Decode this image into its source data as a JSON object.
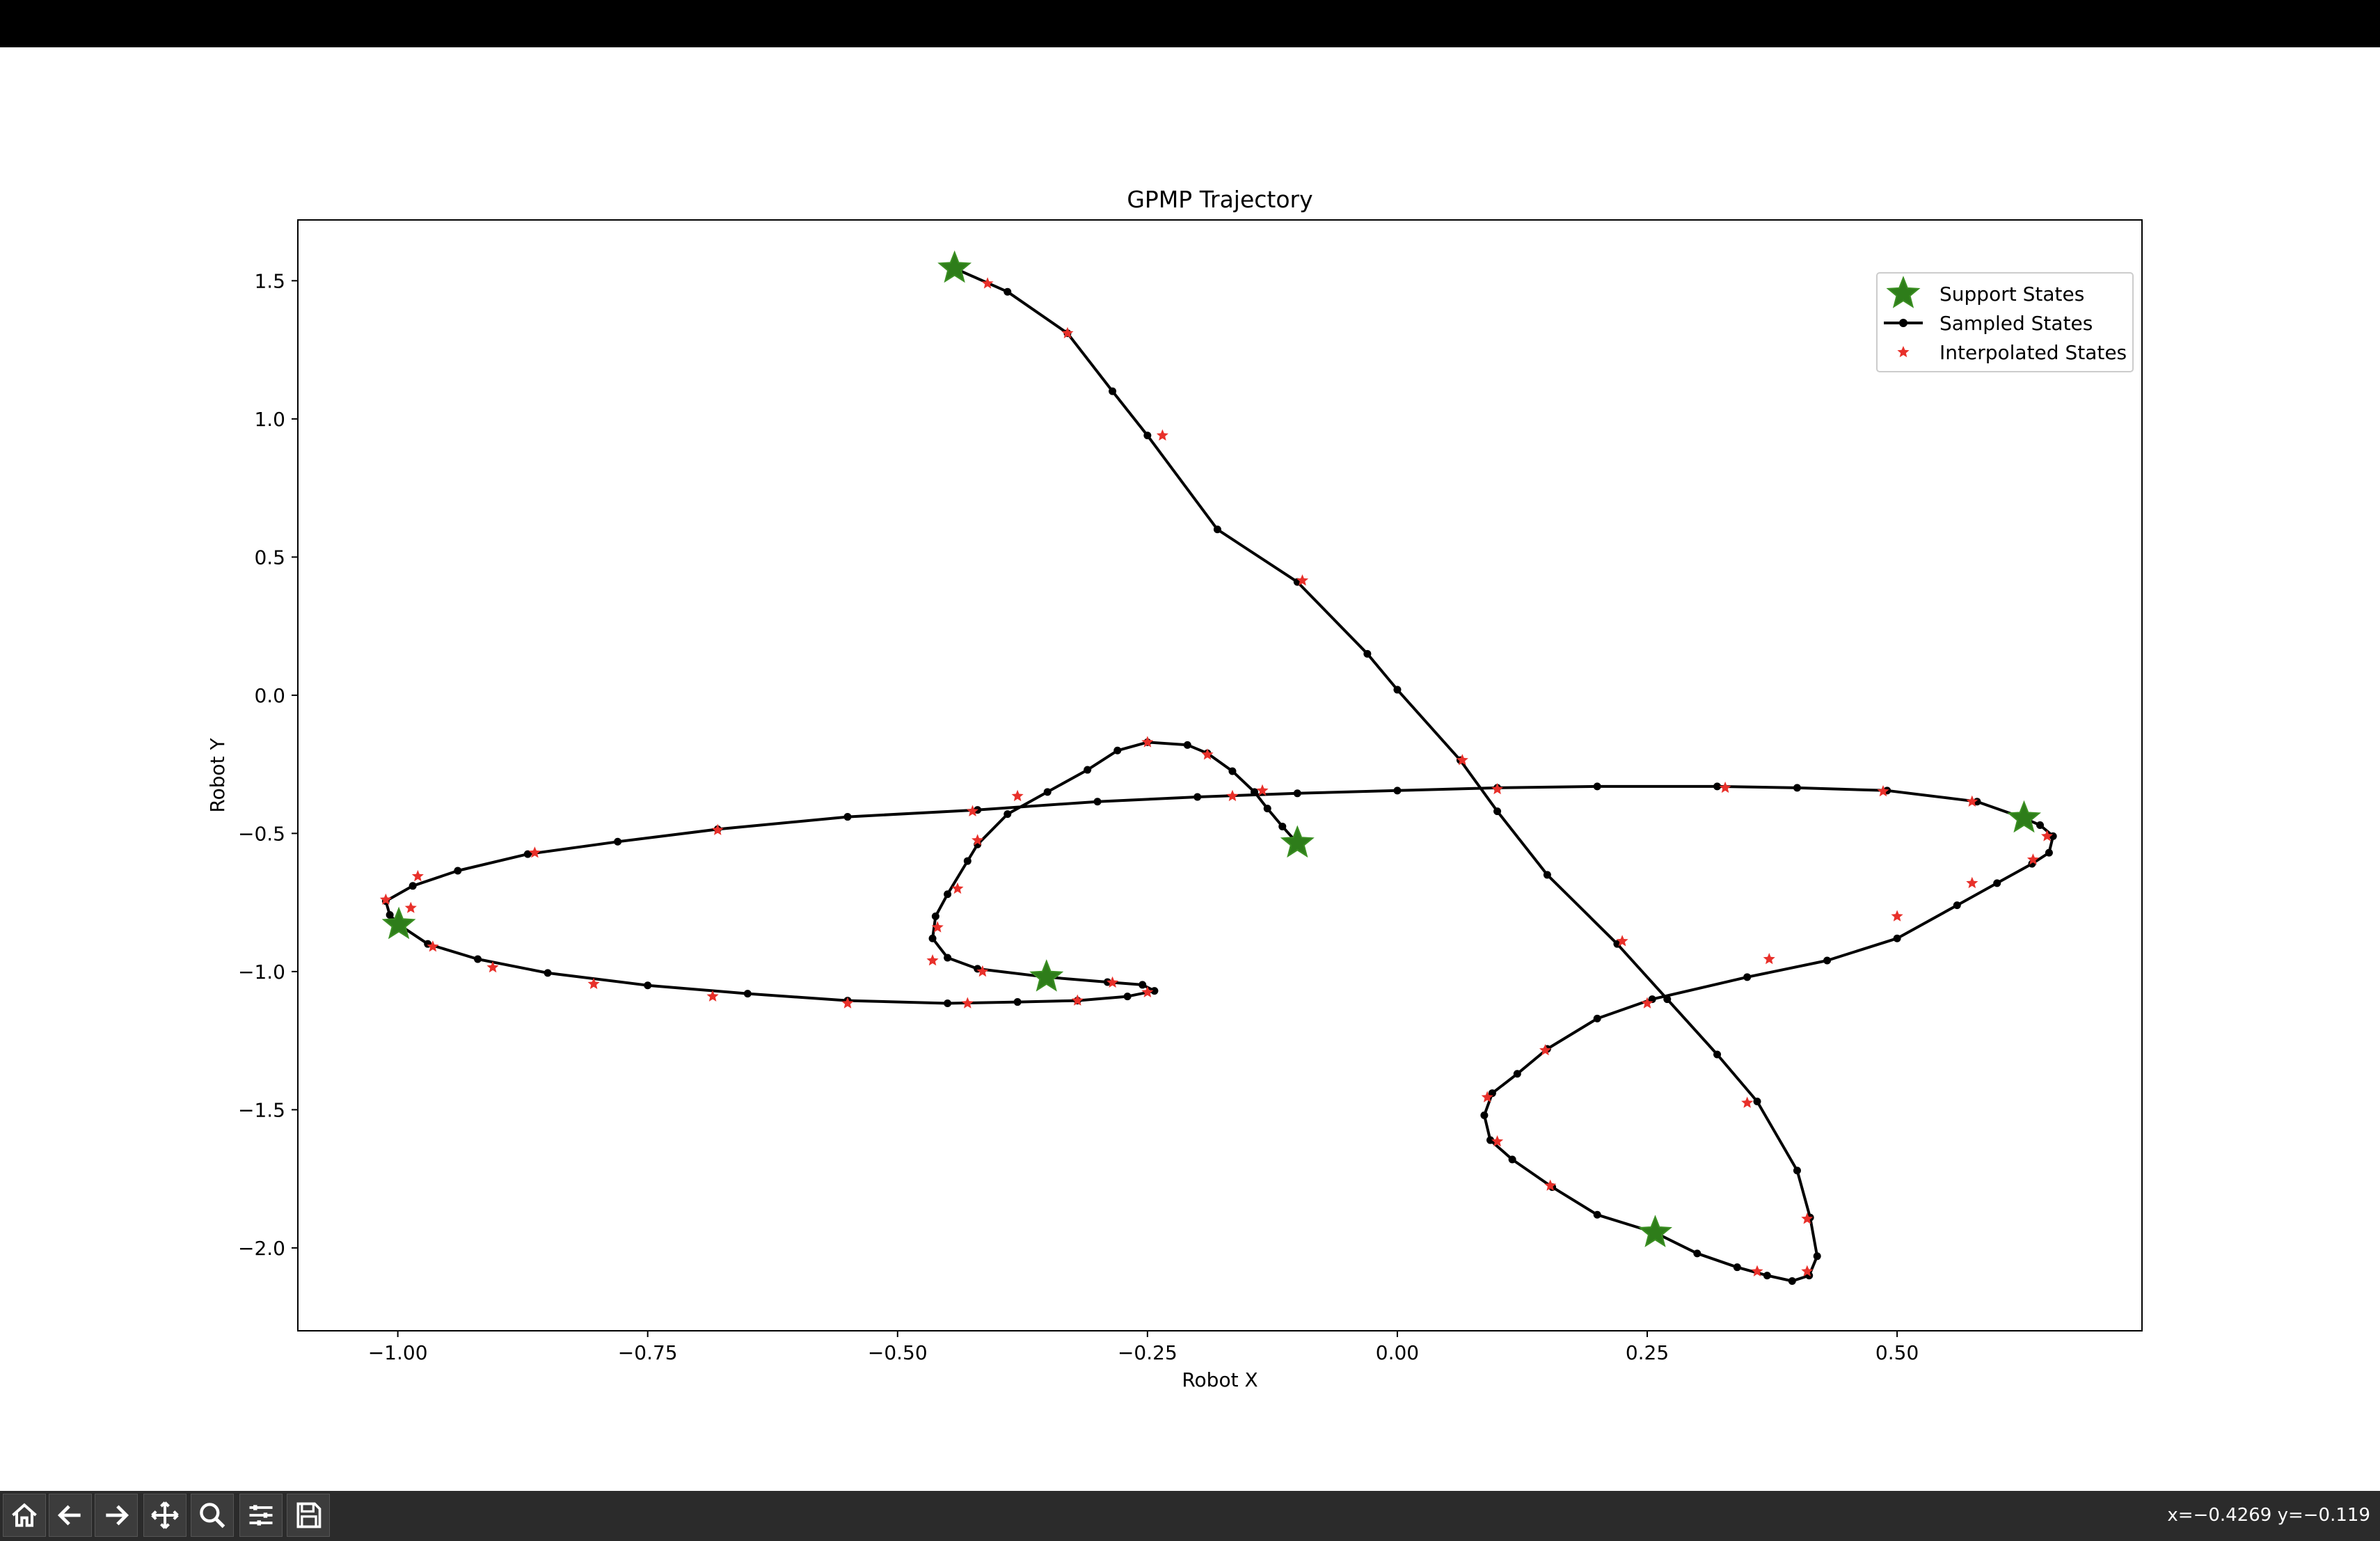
{
  "window": {
    "coords_readout": "x=−0.4269 y=−0.119"
  },
  "toolbar": {
    "buttons": [
      {
        "name": "home-icon"
      },
      {
        "name": "back-icon"
      },
      {
        "name": "forward-icon"
      },
      {
        "name": "pan-icon"
      },
      {
        "name": "zoom-icon"
      },
      {
        "name": "configure-icon"
      },
      {
        "name": "save-icon"
      }
    ]
  },
  "colors": {
    "support": "#2e7d1a",
    "support_edge": "#3a8f22",
    "sampled": "#000000",
    "interpolated": "#e8302a"
  },
  "chart_data": {
    "type": "line",
    "title": "GPMP Trajectory",
    "xlabel": "Robot X",
    "ylabel": "Robot Y",
    "xlim": [
      -1.1,
      0.745
    ],
    "ylim": [
      -2.3,
      1.72
    ],
    "xticks": [
      -1.0,
      -0.75,
      -0.5,
      -0.25,
      0.0,
      0.25,
      0.5
    ],
    "xtick_labels": [
      "−1.00",
      "−0.75",
      "−0.50",
      "−0.25",
      "0.00",
      "0.25",
      "0.50"
    ],
    "yticks": [
      1.5,
      1.0,
      0.5,
      0.0,
      -0.5,
      -1.0,
      -1.5,
      -2.0
    ],
    "ytick_labels": [
      "1.5",
      "1.0",
      "0.5",
      "0.0",
      "−0.5",
      "−1.0",
      "−1.5",
      "−2.0"
    ],
    "grid": false,
    "legend_position": "upper right",
    "legend": [
      "Support States",
      "Sampled States",
      "Interpolated States"
    ],
    "support_states": [
      [
        -0.443,
        1.545
      ],
      [
        0.258,
        -1.945
      ],
      [
        -0.1,
        -0.535
      ],
      [
        0.627,
        -0.445
      ],
      [
        -0.999,
        -0.83
      ],
      [
        -0.351,
        -1.02
      ]
    ],
    "sampled_states": [
      [
        -0.443,
        1.545
      ],
      [
        -0.39,
        1.46
      ],
      [
        -0.33,
        1.31
      ],
      [
        -0.285,
        1.1
      ],
      [
        -0.25,
        0.94
      ],
      [
        -0.18,
        0.6
      ],
      [
        -0.1,
        0.41
      ],
      [
        -0.03,
        0.15
      ],
      [
        0.0,
        0.02
      ],
      [
        0.063,
        -0.235
      ],
      [
        0.1,
        -0.42
      ],
      [
        0.15,
        -0.65
      ],
      [
        0.22,
        -0.9
      ],
      [
        0.27,
        -1.1
      ],
      [
        0.32,
        -1.3
      ],
      [
        0.36,
        -1.47
      ],
      [
        0.4,
        -1.72
      ],
      [
        0.413,
        -1.89
      ],
      [
        0.42,
        -2.03
      ],
      [
        0.412,
        -2.1
      ],
      [
        0.395,
        -2.12
      ],
      [
        0.37,
        -2.1
      ],
      [
        0.34,
        -2.07
      ],
      [
        0.3,
        -2.02
      ],
      [
        0.258,
        -1.945
      ],
      [
        0.2,
        -1.88
      ],
      [
        0.155,
        -1.78
      ],
      [
        0.115,
        -1.68
      ],
      [
        0.093,
        -1.61
      ],
      [
        0.087,
        -1.52
      ],
      [
        0.095,
        -1.44
      ],
      [
        0.12,
        -1.37
      ],
      [
        0.15,
        -1.28
      ],
      [
        0.2,
        -1.17
      ],
      [
        0.255,
        -1.1
      ],
      [
        0.35,
        -1.02
      ],
      [
        0.43,
        -0.96
      ],
      [
        0.5,
        -0.88
      ],
      [
        0.56,
        -0.76
      ],
      [
        0.6,
        -0.68
      ],
      [
        0.635,
        -0.61
      ],
      [
        0.652,
        -0.57
      ],
      [
        0.656,
        -0.51
      ],
      [
        0.643,
        -0.47
      ],
      [
        0.627,
        -0.445
      ],
      [
        0.58,
        -0.385
      ],
      [
        0.49,
        -0.345
      ],
      [
        0.4,
        -0.335
      ],
      [
        0.32,
        -0.33
      ],
      [
        0.2,
        -0.33
      ],
      [
        0.1,
        -0.335
      ],
      [
        0.0,
        -0.345
      ],
      [
        -0.1,
        -0.355
      ],
      [
        -0.2,
        -0.368
      ],
      [
        -0.3,
        -0.385
      ],
      [
        -0.42,
        -0.415
      ],
      [
        -0.55,
        -0.44
      ],
      [
        -0.68,
        -0.485
      ],
      [
        -0.78,
        -0.53
      ],
      [
        -0.87,
        -0.575
      ],
      [
        -0.94,
        -0.635
      ],
      [
        -0.985,
        -0.69
      ],
      [
        -1.012,
        -0.745
      ],
      [
        -1.008,
        -0.795
      ],
      [
        -0.999,
        -0.83
      ],
      [
        -0.97,
        -0.9
      ],
      [
        -0.92,
        -0.955
      ],
      [
        -0.85,
        -1.005
      ],
      [
        -0.75,
        -1.05
      ],
      [
        -0.65,
        -1.08
      ],
      [
        -0.55,
        -1.105
      ],
      [
        -0.45,
        -1.115
      ],
      [
        -0.38,
        -1.11
      ],
      [
        -0.32,
        -1.105
      ],
      [
        -0.27,
        -1.09
      ],
      [
        -0.243,
        -1.07
      ],
      [
        -0.255,
        -1.048
      ],
      [
        -0.29,
        -1.038
      ],
      [
        -0.351,
        -1.02
      ],
      [
        -0.42,
        -0.99
      ],
      [
        -0.45,
        -0.95
      ],
      [
        -0.465,
        -0.88
      ],
      [
        -0.462,
        -0.8
      ],
      [
        -0.45,
        -0.72
      ],
      [
        -0.43,
        -0.6
      ],
      [
        -0.42,
        -0.54
      ],
      [
        -0.39,
        -0.43
      ],
      [
        -0.35,
        -0.35
      ],
      [
        -0.31,
        -0.27
      ],
      [
        -0.28,
        -0.2
      ],
      [
        -0.25,
        -0.17
      ],
      [
        -0.21,
        -0.18
      ],
      [
        -0.19,
        -0.21
      ],
      [
        -0.165,
        -0.275
      ],
      [
        -0.143,
        -0.35
      ],
      [
        -0.13,
        -0.41
      ],
      [
        -0.115,
        -0.475
      ],
      [
        -0.1,
        -0.535
      ]
    ],
    "interpolated_states": [
      [
        -0.41,
        1.49
      ],
      [
        -0.33,
        1.31
      ],
      [
        -0.235,
        0.94
      ],
      [
        -0.095,
        0.415
      ],
      [
        0.065,
        -0.235
      ],
      [
        0.225,
        -0.89
      ],
      [
        0.35,
        -1.475
      ],
      [
        0.41,
        -1.895
      ],
      [
        0.41,
        -2.085
      ],
      [
        0.36,
        -2.085
      ],
      [
        0.153,
        -1.775
      ],
      [
        0.1,
        -1.615
      ],
      [
        0.09,
        -1.455
      ],
      [
        0.148,
        -1.285
      ],
      [
        0.25,
        -1.115
      ],
      [
        0.372,
        -0.955
      ],
      [
        0.5,
        -0.8
      ],
      [
        0.575,
        -0.68
      ],
      [
        0.636,
        -0.595
      ],
      [
        0.65,
        -0.51
      ],
      [
        0.575,
        -0.385
      ],
      [
        0.486,
        -0.348
      ],
      [
        0.328,
        -0.335
      ],
      [
        0.1,
        -0.34
      ],
      [
        -0.165,
        -0.365
      ],
      [
        -0.425,
        -0.42
      ],
      [
        -0.68,
        -0.488
      ],
      [
        -0.863,
        -0.57
      ],
      [
        -0.98,
        -0.655
      ],
      [
        -1.012,
        -0.74
      ],
      [
        -0.987,
        -0.77
      ],
      [
        -0.965,
        -0.91
      ],
      [
        -0.905,
        -0.985
      ],
      [
        -0.804,
        -1.045
      ],
      [
        -0.685,
        -1.09
      ],
      [
        -0.55,
        -1.115
      ],
      [
        -0.43,
        -1.115
      ],
      [
        -0.32,
        -1.105
      ],
      [
        -0.25,
        -1.075
      ],
      [
        -0.285,
        -1.04
      ],
      [
        -0.415,
        -1.0
      ],
      [
        -0.465,
        -0.96
      ],
      [
        -0.46,
        -0.84
      ],
      [
        -0.44,
        -0.7
      ],
      [
        -0.42,
        -0.525
      ],
      [
        -0.38,
        -0.365
      ],
      [
        -0.25,
        -0.17
      ],
      [
        -0.19,
        -0.215
      ],
      [
        -0.135,
        -0.345
      ],
      [
        -0.097,
        -0.535
      ]
    ]
  }
}
